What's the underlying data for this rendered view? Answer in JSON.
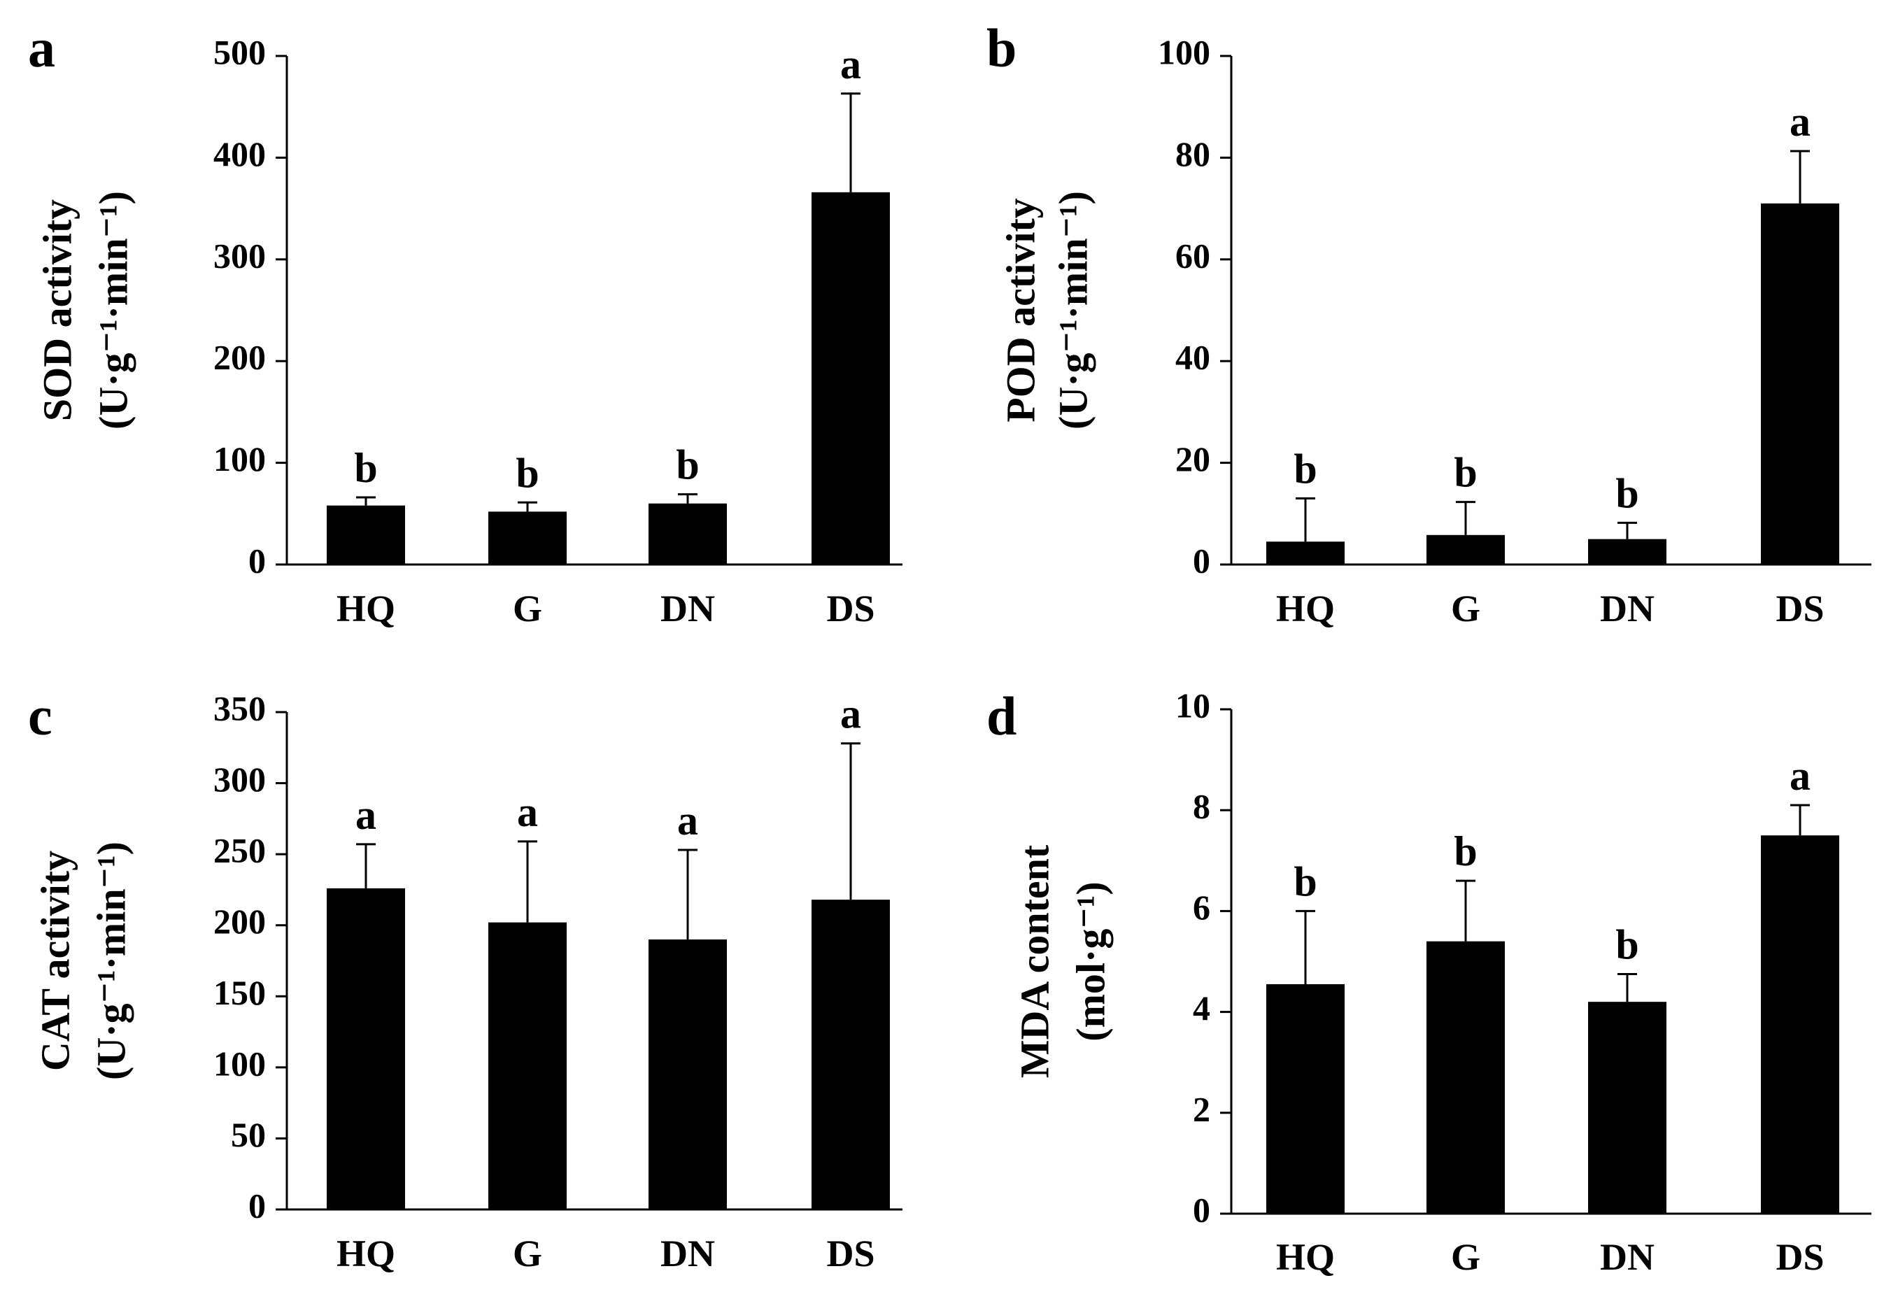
{
  "colors": {
    "bar": "#000000",
    "axis": "#000000",
    "background": "#ffffff"
  },
  "chart_data": [
    {
      "panel": "a",
      "type": "bar",
      "categories": [
        "HQ",
        "G",
        "DN",
        "DS"
      ],
      "values": [
        58,
        52,
        60,
        366
      ],
      "errors": [
        8,
        9,
        9,
        97
      ],
      "significance": [
        "b",
        "b",
        "b",
        "a"
      ],
      "ylabel_line1": "SOD activity",
      "ylabel_line2": "(U·g⁻¹·min⁻¹)",
      "ylim": [
        0,
        500
      ],
      "yticks": [
        0,
        100,
        200,
        300,
        400,
        500
      ],
      "ytick_labels": [
        "0",
        "100",
        "200",
        "300",
        "400",
        "500"
      ]
    },
    {
      "panel": "b",
      "type": "bar",
      "categories": [
        "HQ",
        "G",
        "DN",
        "DS"
      ],
      "values": [
        4.5,
        5.8,
        5.0,
        71
      ],
      "errors": [
        8.5,
        6.5,
        3.2,
        10.3
      ],
      "significance": [
        "b",
        "b",
        "b",
        "a"
      ],
      "ylabel_line1": "POD activity",
      "ylabel_line2": "(U·g⁻¹·min⁻¹)",
      "ylim": [
        0,
        100
      ],
      "yticks": [
        0,
        20,
        40,
        60,
        80,
        100
      ],
      "ytick_labels": [
        "0",
        "20",
        "40",
        "60",
        "80",
        "100"
      ]
    },
    {
      "panel": "c",
      "type": "bar",
      "categories": [
        "HQ",
        "G",
        "DN",
        "DS"
      ],
      "values": [
        226,
        202,
        190,
        218
      ],
      "errors": [
        31,
        57,
        63,
        110
      ],
      "significance": [
        "a",
        "a",
        "a",
        "a"
      ],
      "ylabel_line1": "CAT activity",
      "ylabel_line2": "(U·g⁻¹·min⁻¹)",
      "ylim": [
        0,
        350
      ],
      "yticks": [
        0,
        50,
        100,
        150,
        200,
        250,
        300,
        350
      ],
      "ytick_labels": [
        "0",
        "50",
        "100",
        "150",
        "200",
        "250",
        "300",
        "350"
      ]
    },
    {
      "panel": "d",
      "type": "bar",
      "categories": [
        "HQ",
        "G",
        "DN",
        "DS"
      ],
      "values": [
        4.55,
        5.4,
        4.2,
        7.5
      ],
      "errors": [
        1.45,
        1.2,
        0.55,
        0.6
      ],
      "significance": [
        "b",
        "b",
        "b",
        "a"
      ],
      "ylabel_line1": "MDA content",
      "ylabel_line2": "(mol·g⁻¹)",
      "ylim": [
        0,
        10
      ],
      "yticks": [
        0,
        2,
        4,
        6,
        8,
        10
      ],
      "ytick_labels": [
        "0",
        "2",
        "4",
        "6",
        "8",
        "10"
      ]
    }
  ]
}
